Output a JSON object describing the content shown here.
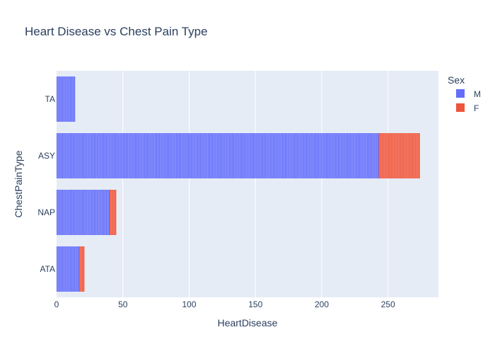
{
  "chart_data": {
    "type": "bar",
    "orientation": "horizontal",
    "barmode": "stack",
    "title": "Heart Disease vs Chest Pain Type",
    "xlabel": "HeartDisease",
    "ylabel": "ChestPainType",
    "categories": [
      "TA",
      "ASY",
      "NAP",
      "ATA"
    ],
    "series": [
      {
        "name": "M",
        "color": "#636efa",
        "values": [
          14,
          243,
          40,
          17
        ]
      },
      {
        "name": "F",
        "color": "#ef553b",
        "values": [
          0,
          31,
          5,
          4
        ]
      }
    ],
    "xlim": [
      0,
      288
    ],
    "xticks": [
      0,
      50,
      100,
      150,
      200,
      250
    ],
    "legend": {
      "title": "Sex",
      "position": "right"
    },
    "grid": true,
    "plot_background": "#e5ecf6"
  }
}
